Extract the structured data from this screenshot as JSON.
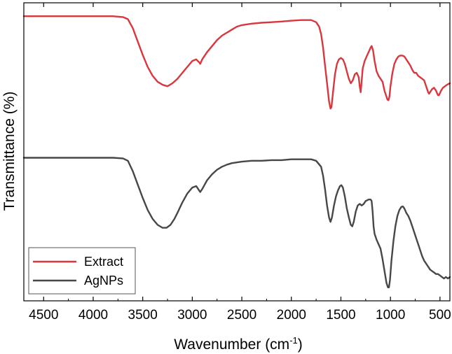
{
  "chart_data": {
    "type": "line",
    "xlabel": "Wavenumber (cm",
    "xlabel_sup": "-1",
    "xlabel_close": ")",
    "ylabel": "Transmittance (%)",
    "xlim": [
      4700,
      400
    ],
    "x_reversed": true,
    "ylim": [
      0,
      100
    ],
    "y_tick_labels_shown": false,
    "x_ticks": [
      4500,
      4000,
      3500,
      3000,
      2500,
      2000,
      1500,
      1000,
      500
    ],
    "x_tick_labels": [
      "4500",
      "4000",
      "3500",
      "3000",
      "2500",
      "2000",
      "1500",
      "1000",
      "500"
    ],
    "legend_position": "bottom-left",
    "grid": false,
    "series": [
      {
        "name": "Extract",
        "color": "#d9363e",
        "points": [
          [
            4700,
            95.5
          ],
          [
            4300,
            95.5
          ],
          [
            4000,
            95.5
          ],
          [
            3800,
            95.5
          ],
          [
            3700,
            95.2
          ],
          [
            3650,
            94.5
          ],
          [
            3600,
            91.5
          ],
          [
            3550,
            87.0
          ],
          [
            3500,
            82.5
          ],
          [
            3450,
            78.5
          ],
          [
            3400,
            75.5
          ],
          [
            3350,
            73.5
          ],
          [
            3300,
            72.5
          ],
          [
            3250,
            72.0
          ],
          [
            3200,
            73.0
          ],
          [
            3150,
            74.5
          ],
          [
            3100,
            76.5
          ],
          [
            3050,
            78.5
          ],
          [
            3000,
            80.5
          ],
          [
            2960,
            81.0
          ],
          [
            2930,
            80.0
          ],
          [
            2920,
            79.5
          ],
          [
            2900,
            81.0
          ],
          [
            2850,
            83.5
          ],
          [
            2800,
            85.5
          ],
          [
            2750,
            87.5
          ],
          [
            2700,
            89.0
          ],
          [
            2650,
            90.0
          ],
          [
            2600,
            91.0
          ],
          [
            2550,
            92.0
          ],
          [
            2500,
            92.5
          ],
          [
            2400,
            93.0
          ],
          [
            2300,
            93.3
          ],
          [
            2200,
            93.5
          ],
          [
            2100,
            93.7
          ],
          [
            2000,
            94.0
          ],
          [
            1900,
            94.2
          ],
          [
            1800,
            94.2
          ],
          [
            1750,
            93.5
          ],
          [
            1720,
            92.0
          ],
          [
            1700,
            89.5
          ],
          [
            1680,
            85.0
          ],
          [
            1660,
            79.0
          ],
          [
            1640,
            73.0
          ],
          [
            1620,
            67.0
          ],
          [
            1605,
            64.5
          ],
          [
            1595,
            65.0
          ],
          [
            1580,
            70.0
          ],
          [
            1560,
            76.0
          ],
          [
            1540,
            79.5
          ],
          [
            1520,
            81.0
          ],
          [
            1500,
            81.5
          ],
          [
            1480,
            81.0
          ],
          [
            1460,
            79.5
          ],
          [
            1440,
            77.0
          ],
          [
            1420,
            74.5
          ],
          [
            1400,
            73.0
          ],
          [
            1380,
            74.0
          ],
          [
            1360,
            76.0
          ],
          [
            1340,
            76.5
          ],
          [
            1320,
            75.0
          ],
          [
            1310,
            72.0
          ],
          [
            1300,
            70.0
          ],
          [
            1290,
            74.0
          ],
          [
            1280,
            78.0
          ],
          [
            1260,
            80.5
          ],
          [
            1240,
            82.0
          ],
          [
            1220,
            83.5
          ],
          [
            1200,
            85.0
          ],
          [
            1190,
            85.5
          ],
          [
            1175,
            84.0
          ],
          [
            1160,
            80.5
          ],
          [
            1140,
            77.0
          ],
          [
            1120,
            75.5
          ],
          [
            1100,
            74.5
          ],
          [
            1080,
            73.5
          ],
          [
            1060,
            70.5
          ],
          [
            1040,
            68.5
          ],
          [
            1030,
            67.5
          ],
          [
            1020,
            67.3
          ],
          [
            1010,
            68.5
          ],
          [
            1000,
            72.0
          ],
          [
            980,
            76.5
          ],
          [
            960,
            79.5
          ],
          [
            940,
            81.0
          ],
          [
            920,
            82.0
          ],
          [
            900,
            82.3
          ],
          [
            880,
            82.3
          ],
          [
            860,
            82.0
          ],
          [
            840,
            81.0
          ],
          [
            820,
            80.0
          ],
          [
            800,
            79.0
          ],
          [
            780,
            77.5
          ],
          [
            760,
            76.5
          ],
          [
            740,
            76.5
          ],
          [
            720,
            75.5
          ],
          [
            700,
            75.0
          ],
          [
            680,
            74.5
          ],
          [
            660,
            74.0
          ],
          [
            640,
            72.0
          ],
          [
            620,
            70.0
          ],
          [
            610,
            69.5
          ],
          [
            600,
            70.0
          ],
          [
            580,
            71.0
          ],
          [
            560,
            71.5
          ],
          [
            540,
            70.5
          ],
          [
            520,
            69.0
          ],
          [
            510,
            69.0
          ],
          [
            490,
            70.5
          ],
          [
            470,
            71.5
          ],
          [
            450,
            72.0
          ],
          [
            430,
            72.5
          ],
          [
            400,
            73.0
          ]
        ]
      },
      {
        "name": "AgNPs",
        "color": "#474747",
        "points": [
          [
            4700,
            48.0
          ],
          [
            4300,
            48.0
          ],
          [
            4000,
            48.0
          ],
          [
            3800,
            48.0
          ],
          [
            3700,
            47.8
          ],
          [
            3650,
            47.0
          ],
          [
            3600,
            43.5
          ],
          [
            3550,
            39.0
          ],
          [
            3500,
            34.5
          ],
          [
            3450,
            30.5
          ],
          [
            3400,
            27.5
          ],
          [
            3350,
            25.5
          ],
          [
            3300,
            24.5
          ],
          [
            3260,
            24.5
          ],
          [
            3220,
            25.5
          ],
          [
            3180,
            27.5
          ],
          [
            3150,
            29.5
          ],
          [
            3100,
            33.0
          ],
          [
            3050,
            36.0
          ],
          [
            3000,
            38.0
          ],
          [
            2960,
            38.5
          ],
          [
            2930,
            37.0
          ],
          [
            2920,
            36.5
          ],
          [
            2900,
            37.5
          ],
          [
            2850,
            40.5
          ],
          [
            2800,
            42.5
          ],
          [
            2750,
            44.0
          ],
          [
            2700,
            45.0
          ],
          [
            2650,
            45.7
          ],
          [
            2600,
            46.2
          ],
          [
            2500,
            46.7
          ],
          [
            2400,
            47.0
          ],
          [
            2300,
            47.0
          ],
          [
            2200,
            47.2
          ],
          [
            2100,
            47.2
          ],
          [
            2000,
            47.5
          ],
          [
            1900,
            47.5
          ],
          [
            1800,
            47.5
          ],
          [
            1750,
            47.0
          ],
          [
            1700,
            45.0
          ],
          [
            1680,
            42.0
          ],
          [
            1660,
            37.5
          ],
          [
            1640,
            32.0
          ],
          [
            1620,
            28.0
          ],
          [
            1605,
            26.5
          ],
          [
            1590,
            28.0
          ],
          [
            1570,
            32.0
          ],
          [
            1550,
            35.0
          ],
          [
            1530,
            37.0
          ],
          [
            1510,
            38.5
          ],
          [
            1495,
            38.8
          ],
          [
            1480,
            38.0
          ],
          [
            1460,
            35.0
          ],
          [
            1440,
            31.0
          ],
          [
            1420,
            28.0
          ],
          [
            1400,
            25.5
          ],
          [
            1385,
            25.0
          ],
          [
            1370,
            26.5
          ],
          [
            1350,
            30.0
          ],
          [
            1330,
            32.0
          ],
          [
            1310,
            32.5
          ],
          [
            1290,
            32.0
          ],
          [
            1270,
            32.5
          ],
          [
            1250,
            33.5
          ],
          [
            1220,
            34.0
          ],
          [
            1200,
            34.0
          ],
          [
            1190,
            33.5
          ],
          [
            1180,
            30.0
          ],
          [
            1170,
            25.0
          ],
          [
            1160,
            22.5
          ],
          [
            1140,
            20.5
          ],
          [
            1120,
            19.0
          ],
          [
            1100,
            17.5
          ],
          [
            1080,
            14.0
          ],
          [
            1060,
            10.0
          ],
          [
            1040,
            6.0
          ],
          [
            1025,
            4.5
          ],
          [
            1015,
            4.5
          ],
          [
            1005,
            7.0
          ],
          [
            990,
            13.5
          ],
          [
            970,
            20.0
          ],
          [
            950,
            25.0
          ],
          [
            930,
            28.5
          ],
          [
            910,
            30.5
          ],
          [
            890,
            31.5
          ],
          [
            875,
            31.7
          ],
          [
            860,
            31.0
          ],
          [
            840,
            29.5
          ],
          [
            820,
            28.5
          ],
          [
            800,
            27.0
          ],
          [
            780,
            25.0
          ],
          [
            760,
            23.0
          ],
          [
            740,
            21.0
          ],
          [
            720,
            19.0
          ],
          [
            700,
            17.0
          ],
          [
            680,
            15.0
          ],
          [
            660,
            13.5
          ],
          [
            640,
            12.5
          ],
          [
            620,
            11.5
          ],
          [
            600,
            10.5
          ],
          [
            580,
            10.0
          ],
          [
            560,
            9.5
          ],
          [
            540,
            9.0
          ],
          [
            520,
            9.0
          ],
          [
            500,
            8.5
          ],
          [
            480,
            8.0
          ],
          [
            460,
            7.5
          ],
          [
            440,
            8.0
          ],
          [
            420,
            7.5
          ],
          [
            400,
            8.0
          ]
        ]
      }
    ]
  }
}
